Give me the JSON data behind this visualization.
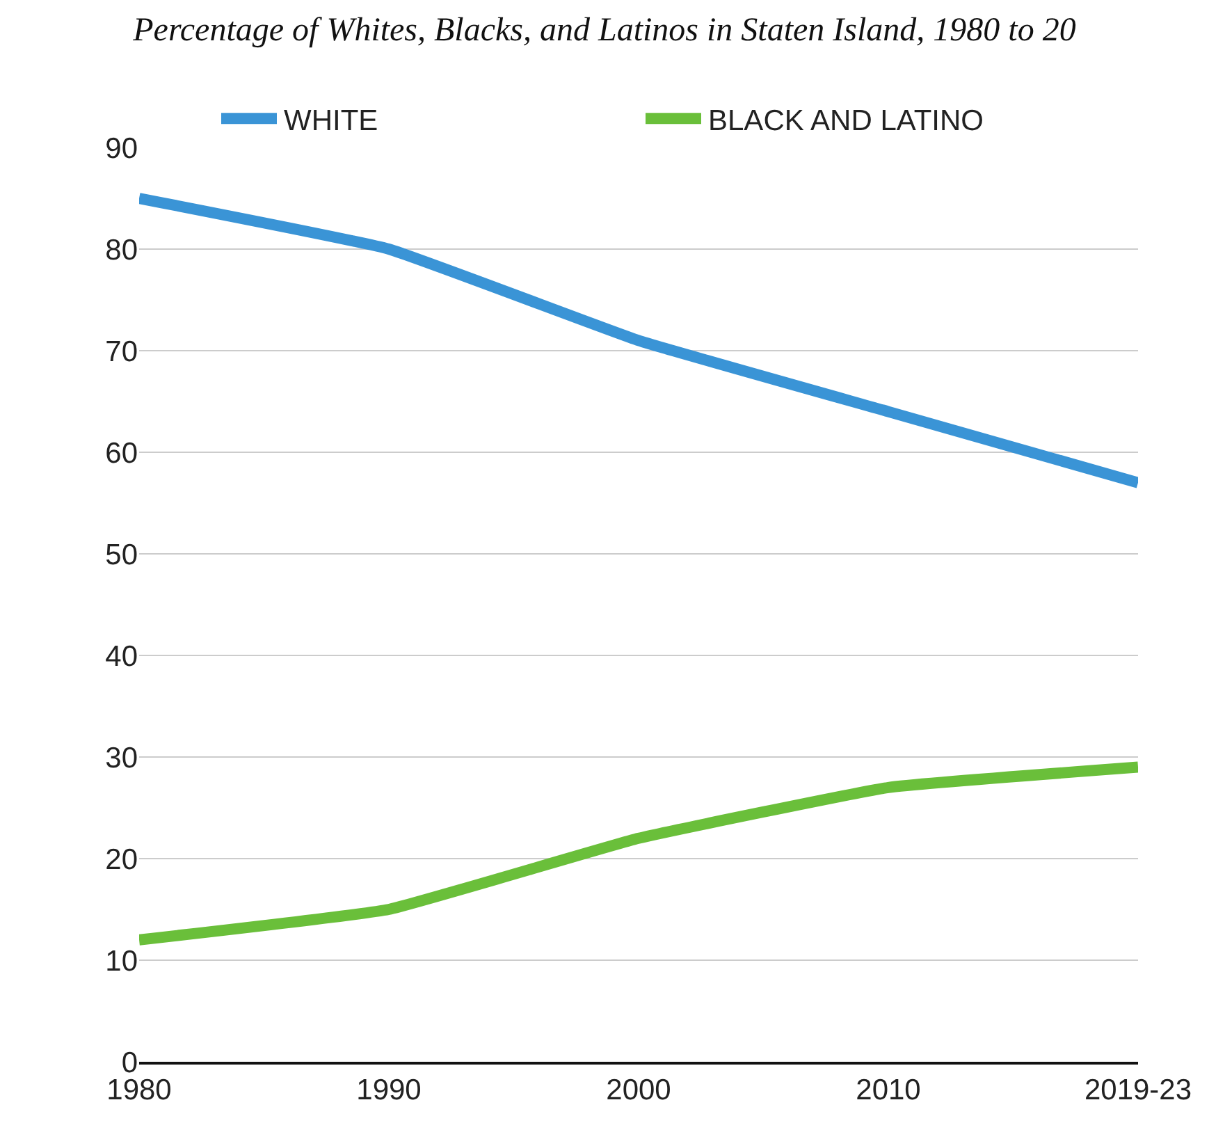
{
  "chart_data": {
    "type": "line",
    "title": "Percentage of Whites, Blacks, and Latinos in Staten Island, 1980 to 20",
    "categories": [
      "1980",
      "1990",
      "2000",
      "2010",
      "2019-23"
    ],
    "series": [
      {
        "name": "WHITE",
        "color": "#3a94d6",
        "values": [
          85,
          80,
          71,
          64,
          57
        ]
      },
      {
        "name": "BLACK AND LATINO",
        "color": "#6abf3a",
        "values": [
          12,
          15,
          22,
          27,
          29
        ]
      }
    ],
    "ylim": [
      0,
      90
    ],
    "yticks": [
      0,
      10,
      20,
      30,
      40,
      50,
      60,
      70,
      80,
      90
    ],
    "grid": "y",
    "legend": "top",
    "marker": "none",
    "line_style": "solid"
  }
}
